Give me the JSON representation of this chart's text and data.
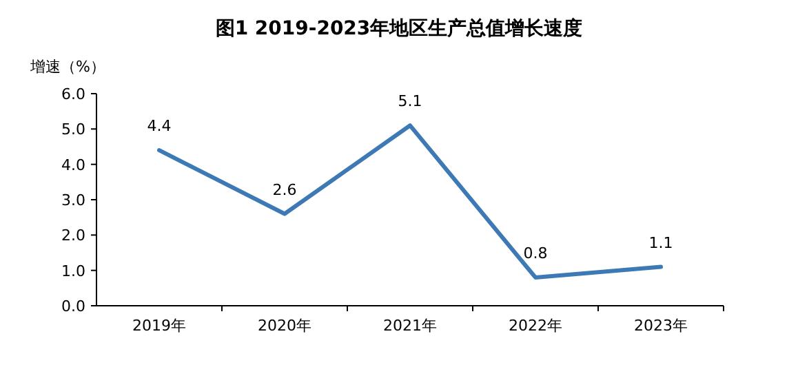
{
  "chart_data": {
    "type": "line",
    "title": "图1 2019-2023年地区生产总值增长速度",
    "ylabel": "增速（%）",
    "categories": [
      "2019年",
      "2020年",
      "2021年",
      "2022年",
      "2023年"
    ],
    "series": [
      {
        "color": "#3d7ab5",
        "values": [
          4.4,
          2.6,
          5.1,
          0.8,
          1.1
        ]
      }
    ],
    "ylim": [
      0,
      6
    ],
    "yticks": [
      {
        "value": 0,
        "label": "0.0"
      },
      {
        "value": 1,
        "label": "1.0"
      },
      {
        "value": 2,
        "label": "2.0"
      },
      {
        "value": 3,
        "label": "3.0"
      },
      {
        "value": 4,
        "label": "4.0"
      },
      {
        "value": 5,
        "label": "5.0"
      },
      {
        "value": 6,
        "label": "6.0"
      }
    ],
    "data_labels": true,
    "grid": false,
    "marker": "none",
    "line_style": "solid"
  }
}
